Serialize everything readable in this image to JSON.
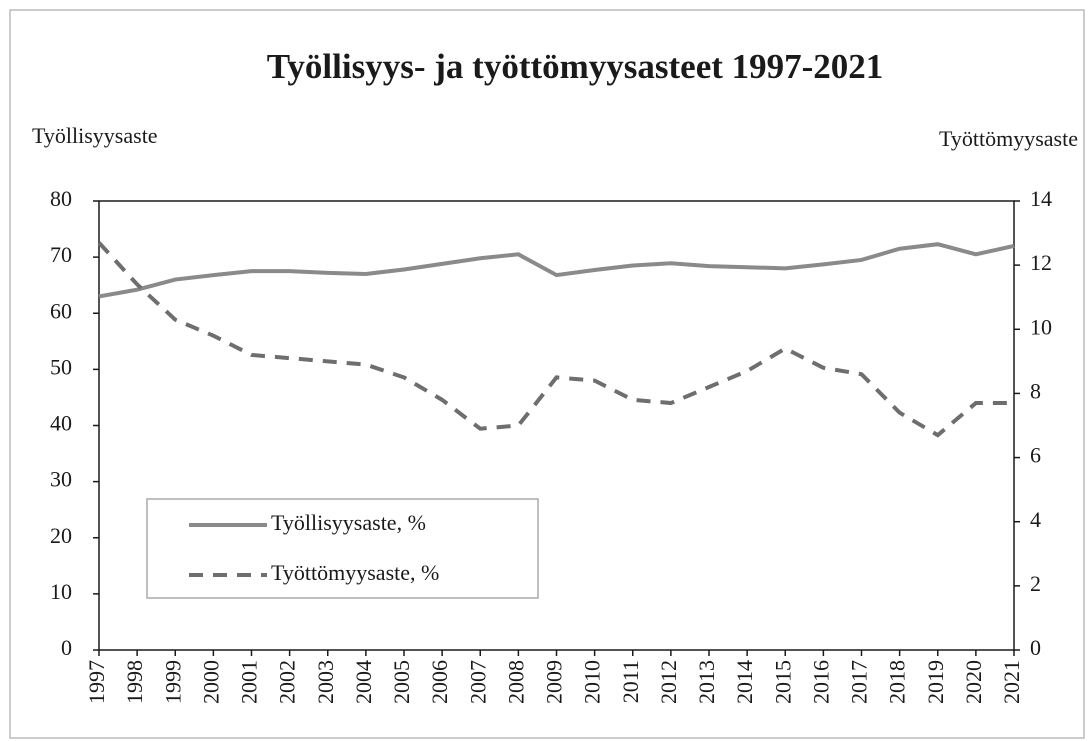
{
  "chart_data": {
    "type": "line",
    "title": "Työllisyys- ja työttömyysasteet 1997-2021",
    "y_label": "Työllisyysaste",
    "y2_label": "Työttömyysaste",
    "categories": [
      "1997",
      "1998",
      "1999",
      "2000",
      "2001",
      "2002",
      "2003",
      "2004",
      "2005",
      "2006",
      "2007",
      "2008",
      "2009",
      "2010",
      "2011",
      "2012",
      "2013",
      "2014",
      "2015",
      "2016",
      "2017",
      "2018",
      "2019",
      "2020",
      "2021"
    ],
    "series": [
      {
        "name": "Työllisyysaste, %",
        "color": "#8a8a8a",
        "dash": false,
        "values": [
          63,
          64.2,
          66,
          66.8,
          67.5,
          67.5,
          67.2,
          67,
          67.8,
          68.8,
          69.8,
          70.5,
          66.8,
          67.7,
          68.5,
          68.9,
          68.4,
          68.2,
          68,
          68.7,
          69.5,
          71.5,
          72.3,
          70.5,
          72
        ]
      },
      {
        "name": "Työttömyysaste, %",
        "color": "#6e6e6e",
        "dash": true,
        "axis": "y2",
        "values": [
          12.7,
          11.4,
          10.3,
          9.8,
          9.2,
          9.1,
          9.0,
          8.9,
          8.5,
          7.8,
          6.9,
          7.0,
          8.5,
          8.4,
          7.8,
          7.7,
          8.2,
          8.7,
          9.4,
          8.8,
          8.6,
          7.4,
          6.7,
          7.7,
          7.7
        ]
      }
    ],
    "ylim": [
      0,
      80
    ],
    "yticks": [
      0,
      10,
      20,
      30,
      40,
      50,
      60,
      70,
      80
    ],
    "y2lim": [
      0,
      14
    ],
    "y2ticks": [
      0,
      2,
      4,
      6,
      8,
      10,
      12,
      14
    ],
    "legend": "lower-left"
  }
}
